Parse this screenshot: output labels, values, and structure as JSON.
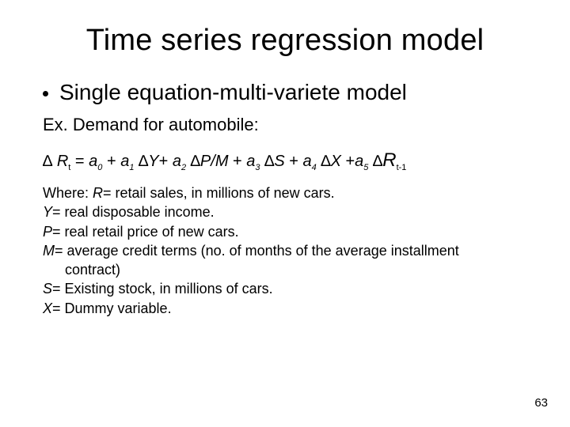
{
  "title": "Time series regression model",
  "bullet": "Single equation-multi-variete model",
  "subhead": "Ex. Demand for automobile:",
  "eq": {
    "delta": "∆",
    "R": "R",
    "t": "t",
    "eq": " = ",
    "a": "a",
    "s0": "0",
    "plus": " + ",
    "s1": "1",
    "dY": "∆",
    "Y": "Y",
    "Yplus": "+ ",
    "s2": "2",
    "dP": "∆",
    "PM": "P/M",
    "s3": "3",
    "dS": "∆",
    "S": "S",
    "s4": "4",
    "dX": "∆",
    "X": "X",
    "plusa": " +",
    "s5": "5",
    "dR": "∆",
    "Rbig": "R",
    "tm1": "t-1"
  },
  "where": {
    "l1a": "Where: ",
    "l1b": "R",
    "l1c": "= retail sales, in millions of new cars.",
    "l2a": "Y",
    "l2b": "= real disposable income.",
    "l3a": "P",
    "l3b": "= real retail price of new cars.",
    "l4a": "M",
    "l4b": "= average credit terms (no. of months of the average installment",
    "l4c": "contract)",
    "l5a": "S",
    "l5b": "= Existing stock, in millions of cars.",
    "l6a": "X",
    "l6b": "= Dummy variable."
  },
  "pagenum": "63"
}
